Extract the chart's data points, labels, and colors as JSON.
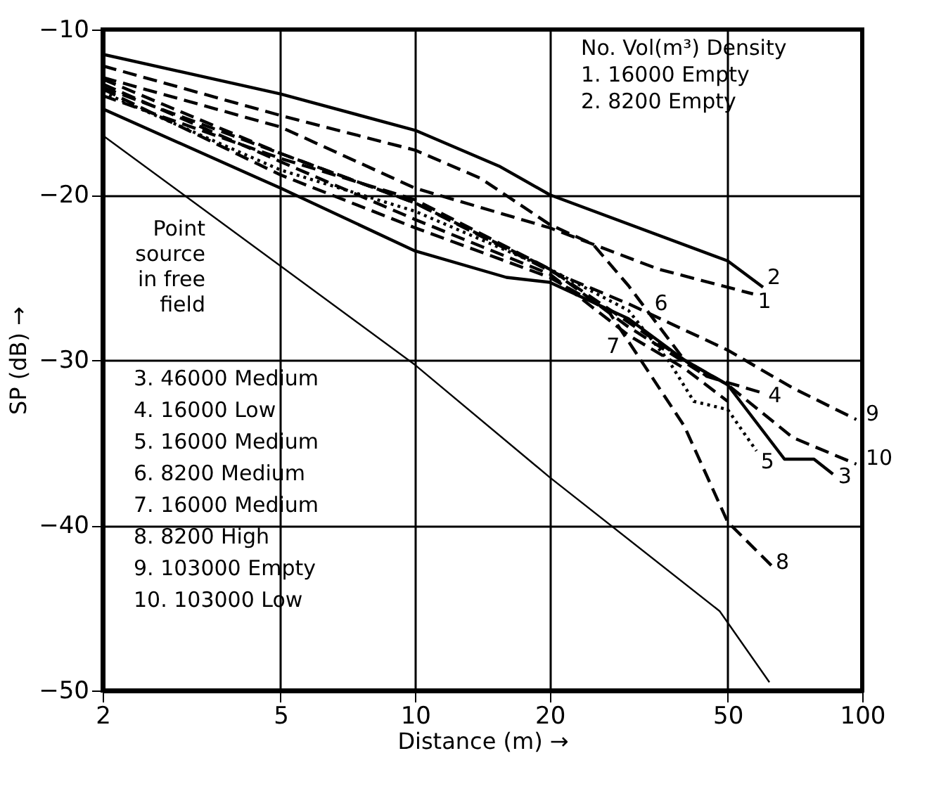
{
  "chart_data": {
    "type": "line",
    "xlabel": "Distance (m) →",
    "ylabel": "SP (dB) →",
    "log": "x",
    "xlim": [
      2,
      100
    ],
    "ylim": [
      -50,
      -10
    ],
    "xticks": [
      2,
      5,
      10,
      20,
      50,
      100
    ],
    "yticks": [
      -50,
      -40,
      -30,
      -20,
      -10
    ],
    "grid": true,
    "legend": false,
    "marker": "none",
    "annotations": [
      {
        "text": "Point\nsource\nin free\nfield",
        "x": 4.6,
        "y": -24
      },
      "No. Vol(m³) Density",
      "1. 16000 Empty",
      "2. 8200 Empty",
      "3. 46000 Medium",
      "4. 16000 Low",
      "5. 16000 Medium",
      "6. 8200 Medium",
      "7. 16000 Medium",
      "8. 8200 High",
      "9. 103000 Empty",
      "10. 103000 Low"
    ],
    "series": [
      {
        "name": "1",
        "color": "#000000",
        "line_style": "dashed",
        "x": [
          2,
          5,
          10,
          20,
          35,
          57
        ],
        "values": [
          -12.9,
          -15.9,
          -19.6,
          -22.0,
          -24.5,
          -26.0
        ]
      },
      {
        "name": "2",
        "color": "#000000",
        "line_style": "solid",
        "x": [
          2,
          5,
          10,
          15.5,
          20,
          50,
          60
        ],
        "values": [
          -11.5,
          -13.9,
          -16.1,
          -18.3,
          -20.0,
          -24.0,
          -25.6
        ]
      },
      {
        "name": "3",
        "color": "#000000",
        "line_style": "solid",
        "x": [
          2,
          5,
          10,
          16,
          20,
          30,
          40,
          50,
          67,
          78,
          86
        ],
        "values": [
          -14.8,
          -19.6,
          -23.4,
          -25,
          -25.3,
          -27.5,
          -30,
          -31.5,
          -36,
          -36,
          -36.9
        ]
      },
      {
        "name": "4",
        "color": "#000000",
        "line_style": "dashed",
        "x": [
          2,
          5,
          10,
          20,
          30,
          45,
          60
        ],
        "values": [
          -13,
          -17.5,
          -20.5,
          -24.5,
          -28,
          -31,
          -32
        ]
      },
      {
        "name": "5",
        "color": "#000000",
        "line_style": "dotted",
        "x": [
          2,
          5,
          10,
          20,
          30,
          37,
          42,
          50,
          58
        ],
        "values": [
          -13.8,
          -18.5,
          -21,
          -24.5,
          -27,
          -30.1,
          -32.5,
          -33,
          -35.5
        ]
      },
      {
        "name": "6",
        "color": "#000000",
        "line_style": "dashed",
        "x": [
          2,
          5,
          10,
          14,
          20,
          25,
          30,
          40,
          45
        ],
        "values": [
          -12.2,
          -15.2,
          -17.3,
          -19,
          -21.8,
          -23,
          -25.5,
          -30,
          -31
        ]
      },
      {
        "name": "7",
        "color": "#000000",
        "line_style": "dashed",
        "x": [
          2,
          5,
          10,
          20,
          30,
          40,
          50
        ],
        "values": [
          -13.3,
          -18,
          -21.5,
          -24.8,
          -28.5,
          -30.5,
          -32.5
        ]
      },
      {
        "name": "8",
        "color": "#000000",
        "line_style": "dashed",
        "x": [
          2,
          5,
          10,
          20,
          27,
          40,
          50,
          63
        ],
        "values": [
          -13.6,
          -18.8,
          -22,
          -25,
          -27,
          -34,
          -39.8,
          -42.5
        ]
      },
      {
        "name": "9",
        "color": "#000000",
        "line_style": "dashed",
        "x": [
          2,
          5,
          10,
          20,
          30,
          50,
          70,
          97
        ],
        "values": [
          -13.5,
          -17.5,
          -20.5,
          -24.6,
          -26.6,
          -29.4,
          -31.7,
          -33.6
        ]
      },
      {
        "name": "10",
        "color": "#000000",
        "line_style": "dashed",
        "x": [
          2,
          5,
          10,
          20,
          40,
          50,
          70,
          97
        ],
        "values": [
          -14,
          -17.8,
          -20.3,
          -24.5,
          -30,
          -31.5,
          -34.7,
          -36.3
        ]
      },
      {
        "color": "#000000",
        "line_style": "solid",
        "x": [
          2,
          10,
          20,
          48,
          62
        ],
        "values": [
          -16.4,
          -30.3,
          -37.1,
          -45.2,
          -49.5
        ]
      }
    ]
  }
}
